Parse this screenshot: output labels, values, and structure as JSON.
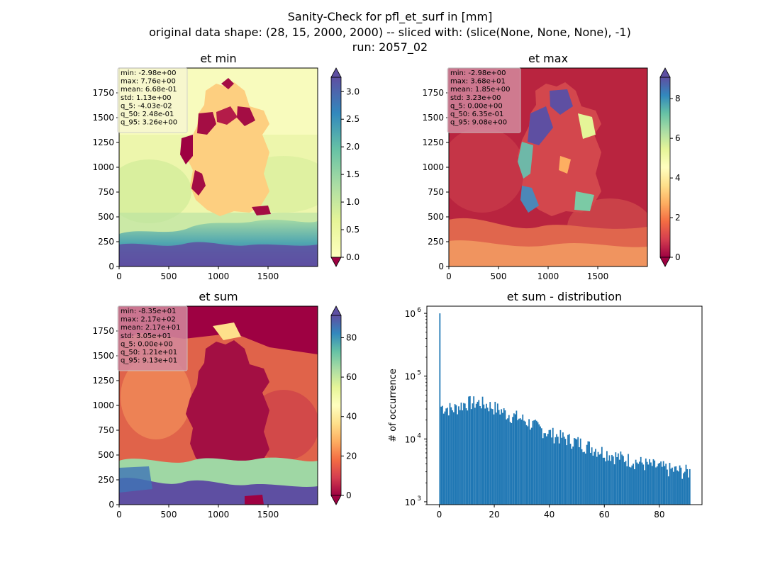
{
  "figure": {
    "title_lines": [
      "Sanity-Check for pfl_et_surf in [mm]",
      "original data shape: (28, 15, 2000, 2000) -- sliced with: (slice(None, None, None), -1)",
      "run: 2057_02"
    ]
  },
  "chart_data": [
    {
      "type": "heatmap",
      "title": "et min",
      "x_ticks": [
        0,
        500,
        1000,
        1500
      ],
      "y_ticks": [
        0,
        250,
        500,
        750,
        1000,
        1250,
        1500,
        1750
      ],
      "xlim": [
        0,
        2000
      ],
      "ylim": [
        0,
        2000
      ],
      "colorbar": {
        "ticks": [
          "0.0",
          "0.5",
          "1.0",
          "1.5",
          "2.0",
          "2.5",
          "3.0"
        ],
        "range": [
          0,
          3.26
        ],
        "colormap": "Spectral",
        "extend": "both"
      },
      "stats": [
        "min: -2.98e+00",
        "max: 7.76e+00",
        "mean: 6.68e-01",
        "std: 1.13e+00",
        "q_5: -4.03e-02",
        "q_50: 2.48e-01",
        "q_95: 3.26e+00"
      ],
      "stats_box_color": "#f7f7d0"
    },
    {
      "type": "heatmap",
      "title": "et max",
      "x_ticks": [
        0,
        500,
        1000,
        1500
      ],
      "y_ticks": [
        0,
        250,
        500,
        750,
        1000,
        1250,
        1500,
        1750
      ],
      "xlim": [
        0,
        2000
      ],
      "ylim": [
        0,
        2000
      ],
      "colorbar": {
        "ticks": [
          "0",
          "2",
          "4",
          "6",
          "8"
        ],
        "range": [
          0,
          9.08
        ],
        "colormap": "Spectral",
        "extend": "both"
      },
      "stats": [
        "min: -2.98e+00",
        "max: 3.68e+01",
        "mean: 1.85e+00",
        "std: 3.23e+00",
        "q_5: 0.00e+00",
        "q_50: 6.35e-01",
        "q_95: 9.08e+00"
      ],
      "stats_box_color": "#d48a9e"
    },
    {
      "type": "heatmap",
      "title": "et sum",
      "x_ticks": [
        0,
        500,
        1000,
        1500
      ],
      "y_ticks": [
        0,
        250,
        500,
        750,
        1000,
        1250,
        1500,
        1750
      ],
      "xlim": [
        0,
        2000
      ],
      "ylim": [
        0,
        2000
      ],
      "colorbar": {
        "ticks": [
          "0",
          "20",
          "40",
          "60",
          "80"
        ],
        "range": [
          0,
          91.3
        ],
        "colormap": "Spectral",
        "extend": "both"
      },
      "stats": [
        "min: -8.35e+01",
        "max: 2.17e+02",
        "mean: 2.17e+01",
        "std: 3.05e+01",
        "q_5: 0.00e+00",
        "q_50: 1.21e+01",
        "q_95: 9.13e+01"
      ],
      "stats_box_color": "#d48a9e"
    },
    {
      "type": "bar",
      "title": "et sum - distribution",
      "ylabel": "# of occurrence",
      "xlabel": "",
      "yscale": "log",
      "xlim": [
        -4.5,
        95.5
      ],
      "ylim": [
        900,
        1300000
      ],
      "x_ticks": [
        0,
        20,
        40,
        60,
        80
      ],
      "y_ticks": [
        {
          "value": 1000,
          "base": "10",
          "exp": "3"
        },
        {
          "value": 10000,
          "base": "10",
          "exp": "4"
        },
        {
          "value": 100000,
          "base": "10",
          "exp": "5"
        },
        {
          "value": 1000000,
          "base": "10",
          "exp": "6"
        }
      ],
      "bin_range": [
        0,
        91.3
      ],
      "peak": {
        "x": 0,
        "value": 1000000
      },
      "bar_color": "#1f77b4",
      "envelope": [
        [
          0.5,
          33000
        ],
        [
          5,
          30000
        ],
        [
          10,
          38000
        ],
        [
          15,
          38000
        ],
        [
          20,
          32000
        ],
        [
          25,
          25000
        ],
        [
          30,
          21000
        ],
        [
          35,
          16000
        ],
        [
          40,
          12500
        ],
        [
          45,
          10500
        ],
        [
          50,
          9000
        ],
        [
          55,
          7500
        ],
        [
          60,
          6200
        ],
        [
          65,
          5200
        ],
        [
          70,
          4600
        ],
        [
          75,
          4000
        ],
        [
          80,
          3600
        ],
        [
          85,
          3200
        ],
        [
          91.3,
          3000
        ]
      ]
    }
  ]
}
